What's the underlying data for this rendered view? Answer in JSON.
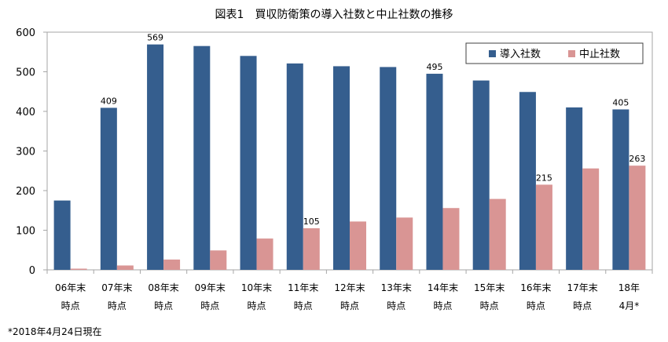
{
  "chart_data": {
    "type": "bar",
    "title": "図表1　買収防衛策の導入社数と中止社数の推移",
    "categories": [
      [
        "06年末",
        "時点"
      ],
      [
        "07年末",
        "時点"
      ],
      [
        "08年末",
        "時点"
      ],
      [
        "09年末",
        "時点"
      ],
      [
        "10年末",
        "時点"
      ],
      [
        "11年末",
        "時点"
      ],
      [
        "12年末",
        "時点"
      ],
      [
        "13年末",
        "時点"
      ],
      [
        "14年末",
        "時点"
      ],
      [
        "15年末",
        "時点"
      ],
      [
        "16年末",
        "時点"
      ],
      [
        "17年末",
        "時点"
      ],
      [
        "18年",
        "4月*"
      ]
    ],
    "series": [
      {
        "name": "導入社数",
        "color": "#355E8E",
        "values": [
          175,
          409,
          569,
          565,
          540,
          521,
          514,
          512,
          495,
          478,
          449,
          410,
          405
        ],
        "labels": [
          null,
          "409",
          "569",
          null,
          null,
          null,
          null,
          null,
          "495",
          null,
          null,
          null,
          "405"
        ]
      },
      {
        "name": "中止社数",
        "color": "#D99594",
        "values": [
          3,
          11,
          26,
          49,
          79,
          105,
          122,
          132,
          156,
          179,
          215,
          256,
          263
        ],
        "labels": [
          null,
          null,
          null,
          null,
          null,
          "105",
          null,
          null,
          null,
          null,
          "215",
          null,
          "263"
        ]
      }
    ],
    "ylim": [
      0,
      600
    ],
    "yticks": [
      0,
      100,
      200,
      300,
      400,
      500,
      600
    ],
    "legend": "top-right",
    "grid": false
  },
  "footnote": "*2018年4月24日現在"
}
